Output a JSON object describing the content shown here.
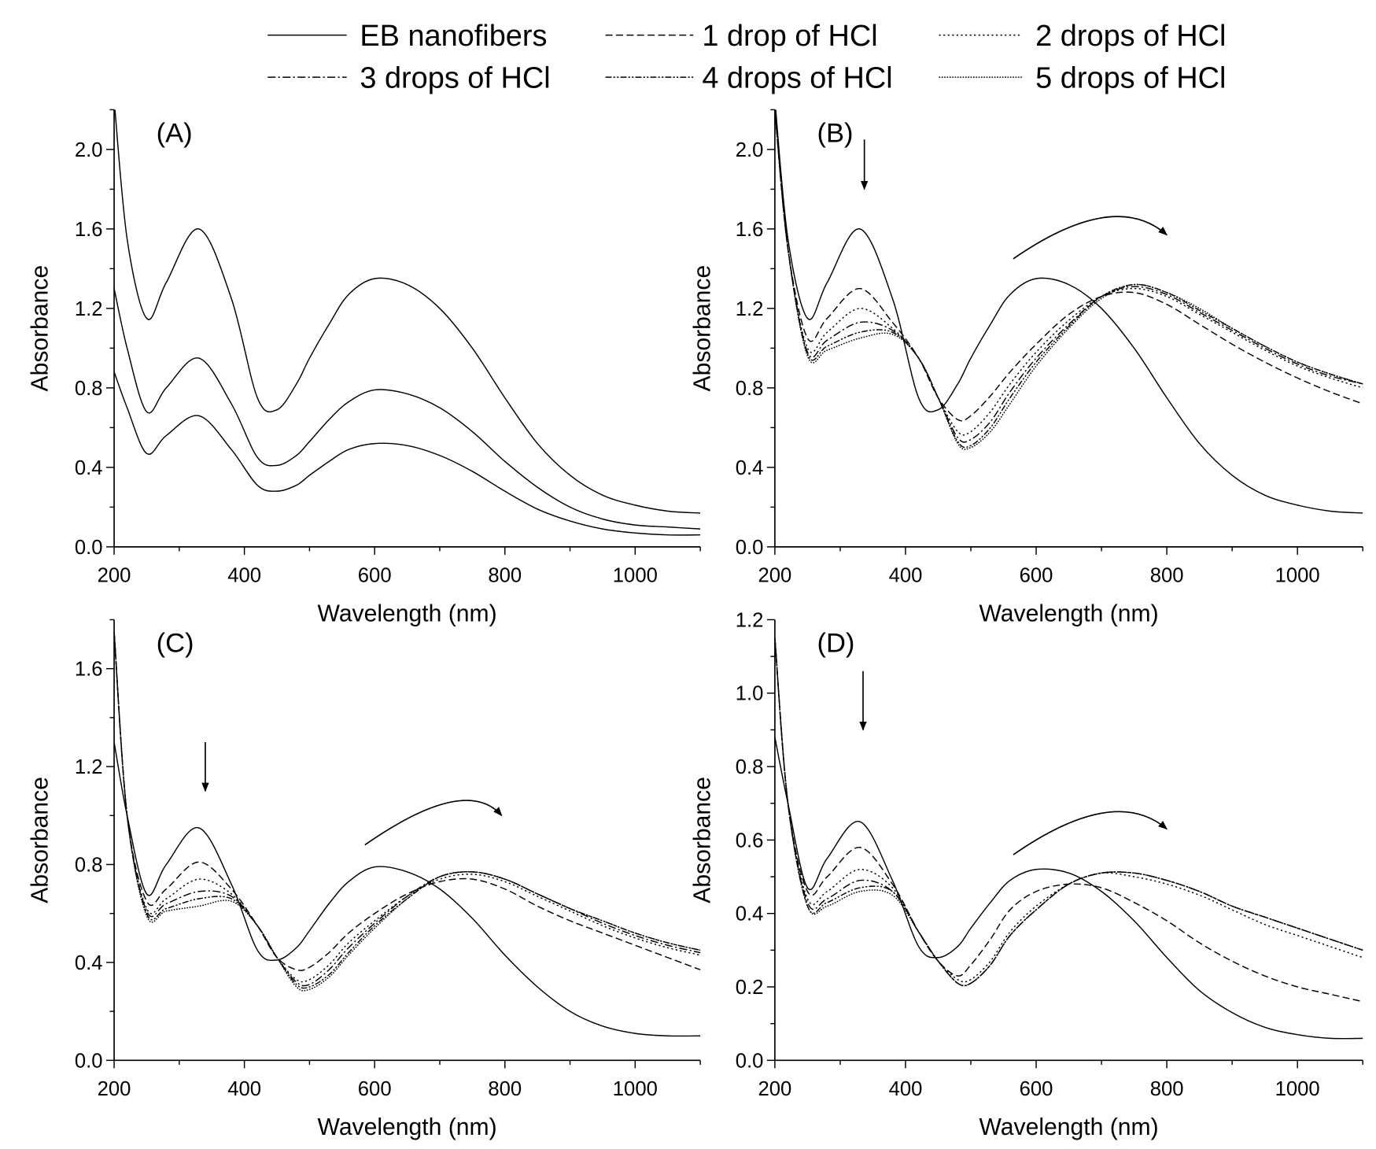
{
  "legend": {
    "placement": "top",
    "entries": [
      {
        "label": "EB nanofibers",
        "style": "solid"
      },
      {
        "label": "1 drop of HCl",
        "style": "dashed"
      },
      {
        "label": "2 drops of HCl",
        "style": "dotted"
      },
      {
        "label": "3 drops of HCl",
        "style": "dash-dot"
      },
      {
        "label": "4 drops of HCl",
        "style": "dash-dot-dot"
      },
      {
        "label": "5 drops of HCl",
        "style": "short-dot"
      }
    ]
  },
  "chart_data": [
    {
      "type": "line",
      "panel_label": "(A)",
      "xlabel": "Wavelength (nm)",
      "ylabel": "Absorbance",
      "xlim": [
        200,
        1100
      ],
      "ylim": [
        0,
        2.2
      ],
      "grid": false,
      "xticks": [
        200,
        400,
        600,
        800,
        1000
      ],
      "yticks": [
        0.0,
        0.4,
        0.8,
        1.2,
        1.6,
        2.0
      ],
      "x": [
        200,
        220,
        250,
        280,
        330,
        380,
        420,
        450,
        480,
        500,
        530,
        560,
        600,
        650,
        700,
        750,
        800,
        850,
        900,
        950,
        1000,
        1050,
        1100
      ],
      "series": [
        {
          "style": "solid",
          "values": [
            2.25,
            1.55,
            1.15,
            1.33,
            1.6,
            1.25,
            0.75,
            0.69,
            0.82,
            0.95,
            1.12,
            1.27,
            1.35,
            1.32,
            1.2,
            1.0,
            0.75,
            0.52,
            0.36,
            0.26,
            0.21,
            0.18,
            0.17
          ]
        },
        {
          "style": "solid",
          "values": [
            1.3,
            1.0,
            0.68,
            0.8,
            0.95,
            0.72,
            0.45,
            0.41,
            0.46,
            0.53,
            0.64,
            0.73,
            0.79,
            0.77,
            0.7,
            0.58,
            0.43,
            0.3,
            0.2,
            0.14,
            0.11,
            0.1,
            0.09
          ]
        },
        {
          "style": "solid",
          "values": [
            0.88,
            0.7,
            0.47,
            0.56,
            0.66,
            0.49,
            0.31,
            0.28,
            0.31,
            0.36,
            0.43,
            0.49,
            0.52,
            0.51,
            0.46,
            0.38,
            0.28,
            0.19,
            0.13,
            0.09,
            0.07,
            0.06,
            0.06
          ]
        }
      ],
      "annotations": []
    },
    {
      "type": "line",
      "panel_label": "(B)",
      "xlabel": "Wavelength (nm)",
      "ylabel": "Absorbance",
      "xlim": [
        200,
        1100
      ],
      "ylim": [
        0,
        2.2
      ],
      "grid": false,
      "xticks": [
        200,
        400,
        600,
        800,
        1000
      ],
      "yticks": [
        0.0,
        0.4,
        0.8,
        1.2,
        1.6,
        2.0
      ],
      "x": [
        200,
        220,
        250,
        280,
        330,
        380,
        420,
        450,
        480,
        500,
        530,
        560,
        600,
        650,
        700,
        750,
        800,
        850,
        900,
        950,
        1000,
        1050,
        1100
      ],
      "series": [
        {
          "name": "EB nanofibers",
          "style": "solid",
          "values": [
            2.25,
            1.55,
            1.15,
            1.33,
            1.6,
            1.25,
            0.75,
            0.69,
            0.82,
            0.95,
            1.12,
            1.27,
            1.35,
            1.32,
            1.2,
            1.0,
            0.75,
            0.52,
            0.36,
            0.26,
            0.21,
            0.18,
            0.17
          ]
        },
        {
          "name": "1 drop of HCl",
          "style": "dashed",
          "values": [
            2.2,
            1.5,
            1.05,
            1.15,
            1.3,
            1.13,
            0.95,
            0.75,
            0.64,
            0.66,
            0.76,
            0.88,
            1.02,
            1.17,
            1.26,
            1.28,
            1.22,
            1.12,
            1.02,
            0.93,
            0.85,
            0.78,
            0.72
          ]
        },
        {
          "name": "2 drops of HCl",
          "style": "dotted",
          "values": [
            2.2,
            1.5,
            1.0,
            1.08,
            1.2,
            1.1,
            0.95,
            0.75,
            0.58,
            0.58,
            0.68,
            0.82,
            0.98,
            1.14,
            1.26,
            1.3,
            1.26,
            1.17,
            1.08,
            0.99,
            0.91,
            0.85,
            0.8
          ]
        },
        {
          "name": "3 drops of HCl",
          "style": "dash-dot",
          "values": [
            2.2,
            1.5,
            0.98,
            1.04,
            1.13,
            1.09,
            0.95,
            0.75,
            0.55,
            0.54,
            0.63,
            0.78,
            0.95,
            1.12,
            1.26,
            1.31,
            1.27,
            1.18,
            1.09,
            1.0,
            0.92,
            0.86,
            0.82
          ]
        },
        {
          "name": "4 drops of HCl",
          "style": "dash-dot-dot",
          "values": [
            2.2,
            1.5,
            0.97,
            1.01,
            1.08,
            1.08,
            0.95,
            0.75,
            0.53,
            0.51,
            0.6,
            0.75,
            0.93,
            1.11,
            1.26,
            1.32,
            1.28,
            1.19,
            1.1,
            1.01,
            0.93,
            0.87,
            0.82
          ]
        },
        {
          "name": "5 drops of HCl",
          "style": "short-dot",
          "values": [
            2.2,
            1.5,
            0.96,
            0.99,
            1.05,
            1.07,
            0.95,
            0.75,
            0.52,
            0.5,
            0.58,
            0.72,
            0.91,
            1.1,
            1.25,
            1.32,
            1.28,
            1.2,
            1.1,
            1.01,
            0.93,
            0.87,
            0.82
          ]
        }
      ],
      "annotations": [
        {
          "type": "arrow-down",
          "points": [
            [
              337,
              2.05
            ],
            [
              337,
              1.8
            ]
          ]
        },
        {
          "type": "arrow-curved",
          "points": [
            [
              565,
              1.45
            ],
            [
              720,
              1.67
            ],
            [
              800,
              1.57
            ]
          ]
        }
      ]
    },
    {
      "type": "line",
      "panel_label": "(C)",
      "xlabel": "Wavelength (nm)",
      "ylabel": "Absorbance",
      "xlim": [
        200,
        1100
      ],
      "ylim": [
        0,
        1.8
      ],
      "grid": false,
      "xticks": [
        200,
        400,
        600,
        800,
        1000
      ],
      "yticks": [
        0.0,
        0.4,
        0.8,
        1.2,
        1.6
      ],
      "x": [
        200,
        220,
        250,
        280,
        330,
        380,
        420,
        450,
        480,
        500,
        530,
        560,
        600,
        650,
        700,
        750,
        800,
        850,
        900,
        950,
        1000,
        1050,
        1100
      ],
      "series": [
        {
          "name": "EB nanofibers",
          "style": "solid",
          "values": [
            1.3,
            1.0,
            0.68,
            0.8,
            0.95,
            0.72,
            0.45,
            0.41,
            0.46,
            0.53,
            0.64,
            0.73,
            0.79,
            0.77,
            0.7,
            0.58,
            0.43,
            0.3,
            0.2,
            0.14,
            0.11,
            0.1,
            0.1
          ]
        },
        {
          "name": "1 drop of HCl",
          "style": "dashed",
          "values": [
            1.75,
            1.0,
            0.65,
            0.7,
            0.81,
            0.7,
            0.55,
            0.42,
            0.37,
            0.38,
            0.44,
            0.52,
            0.6,
            0.68,
            0.73,
            0.74,
            0.7,
            0.63,
            0.57,
            0.52,
            0.47,
            0.42,
            0.37
          ]
        },
        {
          "name": "2 drops of HCl",
          "style": "dotted",
          "values": [
            1.75,
            1.0,
            0.62,
            0.66,
            0.74,
            0.68,
            0.55,
            0.42,
            0.33,
            0.33,
            0.39,
            0.48,
            0.57,
            0.67,
            0.74,
            0.76,
            0.73,
            0.67,
            0.61,
            0.55,
            0.5,
            0.46,
            0.43
          ]
        },
        {
          "name": "3 drops of HCl",
          "style": "dash-dot",
          "values": [
            1.75,
            1.0,
            0.61,
            0.64,
            0.69,
            0.67,
            0.55,
            0.42,
            0.32,
            0.31,
            0.37,
            0.46,
            0.56,
            0.67,
            0.75,
            0.77,
            0.74,
            0.68,
            0.62,
            0.56,
            0.51,
            0.47,
            0.44
          ]
        },
        {
          "name": "4 drops of HCl",
          "style": "dash-dot-dot",
          "values": [
            1.75,
            1.0,
            0.6,
            0.62,
            0.66,
            0.66,
            0.55,
            0.42,
            0.31,
            0.3,
            0.35,
            0.44,
            0.55,
            0.66,
            0.75,
            0.77,
            0.74,
            0.68,
            0.62,
            0.57,
            0.52,
            0.48,
            0.45
          ]
        },
        {
          "name": "5 drops of HCl",
          "style": "short-dot",
          "values": [
            1.75,
            1.0,
            0.59,
            0.61,
            0.63,
            0.65,
            0.55,
            0.42,
            0.3,
            0.29,
            0.34,
            0.43,
            0.54,
            0.66,
            0.75,
            0.77,
            0.74,
            0.68,
            0.62,
            0.57,
            0.52,
            0.48,
            0.45
          ]
        }
      ],
      "annotations": [
        {
          "type": "arrow-down",
          "points": [
            [
              340,
              1.3
            ],
            [
              340,
              1.1
            ]
          ]
        },
        {
          "type": "arrow-curved",
          "points": [
            [
              585,
              0.88
            ],
            [
              740,
              1.06
            ],
            [
              795,
              1.0
            ]
          ]
        }
      ]
    },
    {
      "type": "line",
      "panel_label": "(D)",
      "xlabel": "Wavelength (nm)",
      "ylabel": "Absorbance",
      "xlim": [
        200,
        1100
      ],
      "ylim": [
        0,
        1.2
      ],
      "grid": false,
      "xticks": [
        200,
        400,
        600,
        800,
        1000
      ],
      "yticks": [
        0.0,
        0.2,
        0.4,
        0.6,
        0.8,
        1.0,
        1.2
      ],
      "x": [
        200,
        220,
        250,
        280,
        330,
        380,
        420,
        450,
        480,
        500,
        530,
        560,
        600,
        650,
        700,
        750,
        800,
        850,
        900,
        950,
        1000,
        1050,
        1100
      ],
      "series": [
        {
          "name": "EB nanofibers",
          "style": "solid",
          "values": [
            0.88,
            0.7,
            0.47,
            0.55,
            0.65,
            0.49,
            0.31,
            0.28,
            0.31,
            0.36,
            0.43,
            0.49,
            0.52,
            0.51,
            0.46,
            0.38,
            0.28,
            0.19,
            0.13,
            0.09,
            0.07,
            0.06,
            0.06
          ]
        },
        {
          "name": "1 drop of HCl",
          "style": "dashed",
          "values": [
            1.15,
            0.7,
            0.46,
            0.5,
            0.58,
            0.48,
            0.35,
            0.27,
            0.23,
            0.26,
            0.33,
            0.41,
            0.46,
            0.48,
            0.47,
            0.43,
            0.38,
            0.32,
            0.27,
            0.23,
            0.2,
            0.18,
            0.16
          ]
        },
        {
          "name": "2 drops of HCl",
          "style": "dotted",
          "values": [
            1.15,
            0.7,
            0.44,
            0.46,
            0.52,
            0.47,
            0.35,
            0.27,
            0.22,
            0.22,
            0.27,
            0.35,
            0.42,
            0.48,
            0.51,
            0.5,
            0.48,
            0.45,
            0.41,
            0.37,
            0.34,
            0.31,
            0.28
          ]
        },
        {
          "name": "3 drops of HCl",
          "style": "dash-dot",
          "values": [
            1.15,
            0.7,
            0.43,
            0.44,
            0.49,
            0.46,
            0.35,
            0.27,
            0.21,
            0.21,
            0.26,
            0.34,
            0.41,
            0.48,
            0.51,
            0.51,
            0.49,
            0.46,
            0.42,
            0.39,
            0.36,
            0.33,
            0.3
          ]
        },
        {
          "name": "4 drops of HCl",
          "style": "dash-dot-dot",
          "values": [
            1.15,
            0.7,
            0.42,
            0.43,
            0.47,
            0.46,
            0.35,
            0.27,
            0.21,
            0.21,
            0.26,
            0.34,
            0.41,
            0.48,
            0.51,
            0.51,
            0.49,
            0.46,
            0.42,
            0.39,
            0.36,
            0.33,
            0.3
          ]
        },
        {
          "name": "5 drops of HCl",
          "style": "short-dot",
          "values": [
            1.15,
            0.7,
            0.42,
            0.42,
            0.46,
            0.45,
            0.35,
            0.27,
            0.21,
            0.21,
            0.26,
            0.34,
            0.41,
            0.48,
            0.51,
            0.51,
            0.49,
            0.46,
            0.42,
            0.39,
            0.36,
            0.33,
            0.3
          ]
        }
      ],
      "annotations": [
        {
          "type": "arrow-down",
          "points": [
            [
              335,
              1.06
            ],
            [
              335,
              0.9
            ]
          ]
        },
        {
          "type": "arrow-curved",
          "points": [
            [
              565,
              0.56
            ],
            [
              720,
              0.68
            ],
            [
              800,
              0.63
            ]
          ]
        }
      ]
    }
  ]
}
